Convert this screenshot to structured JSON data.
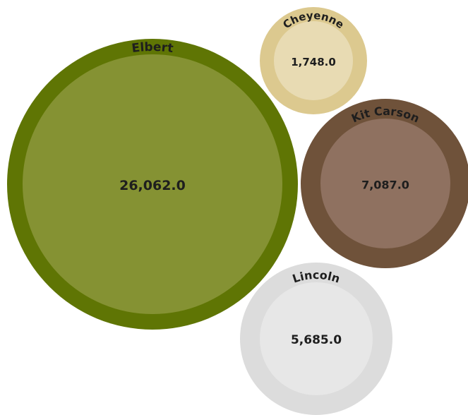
{
  "chart_data": {
    "type": "bubble",
    "title": "",
    "legend": "none",
    "bubbles": [
      {
        "name": "Elbert",
        "value": 26062.0,
        "value_label": "26,062.0",
        "outer_color": "#5f7504",
        "inner_color": "#859233"
      },
      {
        "name": "Cheyenne",
        "value": 1748.0,
        "value_label": "1,748.0",
        "outer_color": "#dcc98f",
        "inner_color": "#e8dbb3"
      },
      {
        "name": "Kit Carson",
        "value": 7087.0,
        "value_label": "7,087.0",
        "outer_color": "#6f523a",
        "inner_color": "#8f7160"
      },
      {
        "name": "Lincoln",
        "value": 5685.0,
        "value_label": "5,685.0",
        "outer_color": "#dcdcdc",
        "inner_color": "#e7e7e7"
      }
    ]
  }
}
